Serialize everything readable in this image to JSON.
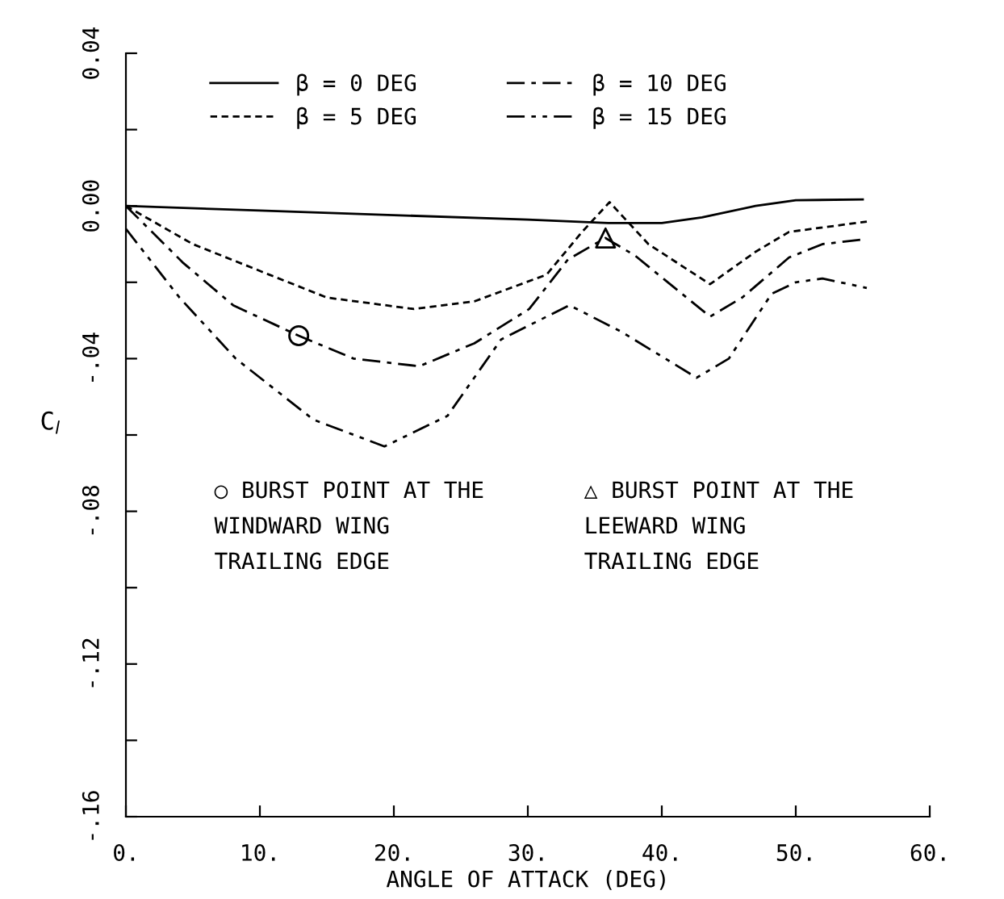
{
  "chart_data": {
    "type": "line",
    "xlabel": "ANGLE OF ATTACK (DEG)",
    "ylabel": "C$_{l}$",
    "xlim": [
      0,
      60
    ],
    "ylim": [
      -0.16,
      0.04
    ],
    "xticks": [
      {
        "value": 0,
        "label": "0."
      },
      {
        "value": 10,
        "label": "10."
      },
      {
        "value": 20,
        "label": "20."
      },
      {
        "value": 30,
        "label": "30."
      },
      {
        "value": 40,
        "label": "40."
      },
      {
        "value": 50,
        "label": "50."
      },
      {
        "value": 60,
        "label": "60."
      }
    ],
    "yticks": [
      {
        "value": -0.16,
        "label": "-.16"
      },
      {
        "value": -0.14,
        "label": null
      },
      {
        "value": -0.12,
        "label": "-.12"
      },
      {
        "value": -0.1,
        "label": null
      },
      {
        "value": -0.08,
        "label": "-.08"
      },
      {
        "value": -0.06,
        "label": null
      },
      {
        "value": -0.04,
        "label": "-.04"
      },
      {
        "value": -0.02,
        "label": null
      },
      {
        "value": 0,
        "label": "0.00"
      },
      {
        "value": 0.02,
        "label": null
      },
      {
        "value": 0.04,
        "label": "0.04"
      }
    ],
    "grid": false,
    "legend": "top left",
    "marker": "none",
    "series": [
      {
        "name": "β = 0 DEG",
        "color": "#000000",
        "line_style": "solid",
        "x": [
          0,
          10,
          20,
          30,
          36,
          40,
          43,
          47,
          50,
          55
        ],
        "values": [
          0,
          -0.0012,
          -0.0024,
          -0.0036,
          -0.0045,
          -0.0045,
          -0.003,
          0.0,
          0.0015,
          0.0017
        ]
      },
      {
        "name": "β = 5 DEG",
        "color": "#000000",
        "line_style": "dashed",
        "x": [
          0,
          5,
          10.7,
          15,
          21.5,
          26,
          31.4,
          34,
          36.1,
          39,
          43.6,
          47,
          49.5,
          55.3
        ],
        "values": [
          0,
          -0.01,
          -0.018,
          -0.024,
          -0.027,
          -0.025,
          -0.018,
          -0.007,
          0.001,
          -0.01,
          -0.0205,
          -0.012,
          -0.0068,
          -0.0041
        ]
      },
      {
        "name": "β = 10 DEG",
        "color": "#000000",
        "line_style": "dashdot",
        "x": [
          0,
          4.3,
          8,
          12.9,
          17,
          21.9,
          26,
          30.1,
          33,
          35.8,
          38,
          43.6,
          46,
          49.5,
          52,
          55
        ],
        "values": [
          0,
          -0.015,
          -0.026,
          -0.034,
          -0.04,
          -0.042,
          -0.036,
          -0.027,
          -0.014,
          -0.0084,
          -0.013,
          -0.029,
          -0.024,
          -0.0135,
          -0.01,
          -0.0088
        ]
      },
      {
        "name": "β = 15 DEG",
        "color": "#000000",
        "line_style": "dashdotdot",
        "x": [
          0,
          4,
          8.2,
          14,
          19.3,
          24,
          28,
          33.1,
          37,
          42.6,
          45,
          48.2,
          50,
          52,
          55.3
        ],
        "values": [
          -0.006,
          -0.024,
          -0.04,
          -0.056,
          -0.063,
          -0.055,
          -0.035,
          -0.026,
          -0.033,
          -0.045,
          -0.04,
          -0.023,
          -0.02,
          -0.019,
          -0.0215
        ]
      },
      {
        "type": "scatter",
        "marker": "circle",
        "color": "#000000",
        "x": [
          12.9
        ],
        "values": [
          -0.034
        ]
      },
      {
        "type": "scatter",
        "marker": "triangle",
        "color": "#000000",
        "x": [
          35.8
        ],
        "values": [
          -0.0084
        ]
      }
    ],
    "annotations": [
      "○ BURST POINT AT THE\nWINDWARD WING\nTRAILING EDGE",
      "△ BURST POINT AT THE\nLEEWARD WING\nTRAILING EDGE"
    ]
  }
}
